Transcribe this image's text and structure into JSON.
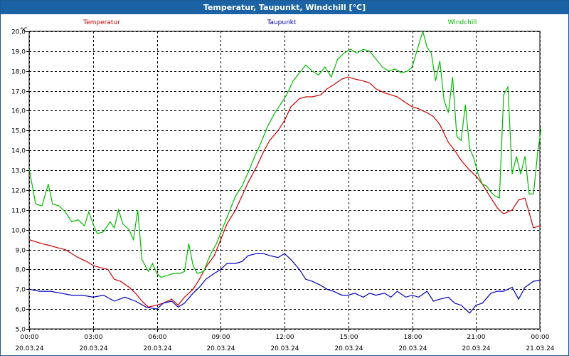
{
  "window_title": "Temperatur, Taupunkt, Windchill [°C]",
  "chart_data": {
    "type": "line",
    "ylabel": "°C",
    "ylim": [
      5.0,
      20.0
    ],
    "yticks": [
      5.0,
      6.0,
      7.0,
      8.0,
      9.0,
      10.0,
      11.0,
      12.0,
      13.0,
      14.0,
      15.0,
      16.0,
      17.0,
      18.0,
      19.0,
      20.0
    ],
    "ytick_labels": [
      "5,0",
      "6,0",
      "7,0",
      "8,0",
      "9,0",
      "10,0",
      "11,0",
      "12,0",
      "13,0",
      "14,0",
      "15,0",
      "16,0",
      "17,0",
      "18,0",
      "19,0",
      "20,0"
    ],
    "xlim": [
      0,
      24
    ],
    "xticks": [
      {
        "h": 0,
        "time": "00:00",
        "date": "20.03.24"
      },
      {
        "h": 3,
        "time": "03:00",
        "date": "20.03.24"
      },
      {
        "h": 6,
        "time": "06:00",
        "date": "20.03.24"
      },
      {
        "h": 9,
        "time": "09:00",
        "date": "20.03.24"
      },
      {
        "h": 12,
        "time": "12:00",
        "date": "20.03.24"
      },
      {
        "h": 15,
        "time": "15:00",
        "date": "20.03.24"
      },
      {
        "h": 18,
        "time": "18:00",
        "date": "20.03.24"
      },
      {
        "h": 21,
        "time": "21:00",
        "date": "20.03.24"
      },
      {
        "h": 24,
        "time": "00:00",
        "date": "21.03.24"
      }
    ],
    "grid": true,
    "legend_position": "top",
    "series": [
      {
        "name": "Temperatur",
        "color": "#cc0000",
        "points": [
          [
            0.0,
            9.5
          ],
          [
            0.3,
            9.4
          ],
          [
            0.6,
            9.3
          ],
          [
            1.0,
            9.2
          ],
          [
            1.3,
            9.1
          ],
          [
            1.7,
            9.0
          ],
          [
            2.0,
            8.8
          ],
          [
            2.3,
            8.6
          ],
          [
            2.7,
            8.4
          ],
          [
            3.0,
            8.2
          ],
          [
            3.3,
            8.1
          ],
          [
            3.7,
            8.0
          ],
          [
            4.0,
            7.5
          ],
          [
            4.3,
            7.4
          ],
          [
            4.7,
            7.1
          ],
          [
            5.0,
            6.8
          ],
          [
            5.3,
            6.4
          ],
          [
            5.6,
            6.1
          ],
          [
            6.0,
            6.2
          ],
          [
            6.3,
            6.3
          ],
          [
            6.7,
            6.5
          ],
          [
            7.0,
            6.2
          ],
          [
            7.3,
            6.6
          ],
          [
            7.7,
            7.0
          ],
          [
            8.0,
            7.5
          ],
          [
            8.3,
            8.1
          ],
          [
            8.7,
            8.7
          ],
          [
            9.0,
            9.5
          ],
          [
            9.3,
            10.3
          ],
          [
            9.7,
            11.0
          ],
          [
            10.0,
            11.7
          ],
          [
            10.3,
            12.4
          ],
          [
            10.7,
            13.2
          ],
          [
            11.0,
            13.9
          ],
          [
            11.3,
            14.5
          ],
          [
            11.7,
            15.0
          ],
          [
            12.0,
            15.5
          ],
          [
            12.3,
            16.2
          ],
          [
            12.7,
            16.6
          ],
          [
            13.0,
            16.7
          ],
          [
            13.3,
            16.7
          ],
          [
            13.7,
            16.8
          ],
          [
            14.0,
            17.1
          ],
          [
            14.3,
            17.3
          ],
          [
            14.7,
            17.6
          ],
          [
            15.0,
            17.7
          ],
          [
            15.3,
            17.6
          ],
          [
            15.7,
            17.5
          ],
          [
            16.0,
            17.4
          ],
          [
            16.3,
            17.1
          ],
          [
            16.7,
            16.9
          ],
          [
            17.0,
            16.8
          ],
          [
            17.3,
            16.7
          ],
          [
            17.7,
            16.4
          ],
          [
            18.0,
            16.2
          ],
          [
            18.3,
            16.1
          ],
          [
            18.7,
            15.9
          ],
          [
            19.0,
            15.7
          ],
          [
            19.3,
            15.3
          ],
          [
            19.7,
            14.4
          ],
          [
            20.0,
            14.0
          ],
          [
            20.3,
            13.5
          ],
          [
            20.7,
            13.0
          ],
          [
            21.0,
            12.7
          ],
          [
            21.3,
            12.3
          ],
          [
            21.7,
            11.6
          ],
          [
            22.0,
            11.1
          ],
          [
            22.3,
            10.8
          ],
          [
            22.7,
            11.0
          ],
          [
            23.0,
            11.5
          ],
          [
            23.3,
            11.6
          ],
          [
            23.7,
            10.1
          ],
          [
            24.0,
            10.2
          ],
          [
            24.2,
            10.1
          ]
        ]
      },
      {
        "name": "Taupunkt",
        "color": "#0000bb",
        "points": [
          [
            0.0,
            7.0
          ],
          [
            0.5,
            6.9
          ],
          [
            1.0,
            6.9
          ],
          [
            1.5,
            6.8
          ],
          [
            2.0,
            6.7
          ],
          [
            2.5,
            6.7
          ],
          [
            3.0,
            6.6
          ],
          [
            3.5,
            6.7
          ],
          [
            4.0,
            6.4
          ],
          [
            4.5,
            6.6
          ],
          [
            5.0,
            6.4
          ],
          [
            5.5,
            6.1
          ],
          [
            6.0,
            6.0
          ],
          [
            6.3,
            6.3
          ],
          [
            6.7,
            6.4
          ],
          [
            7.0,
            6.1
          ],
          [
            7.3,
            6.3
          ],
          [
            7.7,
            6.8
          ],
          [
            8.0,
            7.1
          ],
          [
            8.3,
            7.5
          ],
          [
            8.7,
            7.8
          ],
          [
            9.0,
            8.0
          ],
          [
            9.3,
            8.3
          ],
          [
            9.7,
            8.3
          ],
          [
            10.0,
            8.4
          ],
          [
            10.3,
            8.7
          ],
          [
            10.7,
            8.8
          ],
          [
            11.0,
            8.8
          ],
          [
            11.3,
            8.7
          ],
          [
            11.7,
            8.6
          ],
          [
            12.0,
            8.8
          ],
          [
            12.3,
            8.5
          ],
          [
            12.7,
            8.0
          ],
          [
            13.0,
            7.5
          ],
          [
            13.3,
            7.4
          ],
          [
            13.7,
            7.2
          ],
          [
            14.0,
            7.0
          ],
          [
            14.3,
            6.9
          ],
          [
            14.7,
            6.7
          ],
          [
            15.0,
            6.7
          ],
          [
            15.3,
            6.8
          ],
          [
            15.7,
            6.6
          ],
          [
            16.0,
            6.8
          ],
          [
            16.3,
            6.7
          ],
          [
            16.7,
            6.8
          ],
          [
            17.0,
            6.6
          ],
          [
            17.3,
            6.9
          ],
          [
            17.7,
            6.6
          ],
          [
            18.0,
            6.7
          ],
          [
            18.3,
            6.6
          ],
          [
            18.7,
            6.9
          ],
          [
            19.0,
            6.4
          ],
          [
            19.3,
            6.5
          ],
          [
            19.7,
            6.6
          ],
          [
            20.0,
            6.3
          ],
          [
            20.3,
            6.2
          ],
          [
            20.7,
            5.8
          ],
          [
            21.0,
            6.2
          ],
          [
            21.3,
            6.3
          ],
          [
            21.7,
            6.8
          ],
          [
            22.0,
            6.9
          ],
          [
            22.3,
            6.9
          ],
          [
            22.7,
            7.1
          ],
          [
            23.0,
            6.5
          ],
          [
            23.3,
            7.1
          ],
          [
            23.7,
            7.4
          ],
          [
            24.2,
            7.5
          ]
        ]
      },
      {
        "name": "Windchill",
        "color": "#00bb00",
        "points": [
          [
            0.0,
            13.1
          ],
          [
            0.3,
            11.3
          ],
          [
            0.6,
            11.2
          ],
          [
            0.9,
            12.3
          ],
          [
            1.1,
            11.3
          ],
          [
            1.4,
            11.2
          ],
          [
            1.7,
            10.9
          ],
          [
            2.0,
            10.4
          ],
          [
            2.3,
            10.5
          ],
          [
            2.6,
            10.2
          ],
          [
            2.8,
            10.9
          ],
          [
            3.0,
            10.3
          ],
          [
            3.2,
            9.8
          ],
          [
            3.5,
            9.9
          ],
          [
            3.8,
            10.4
          ],
          [
            4.0,
            10.1
          ],
          [
            4.2,
            11.0
          ],
          [
            4.4,
            10.3
          ],
          [
            4.7,
            10.0
          ],
          [
            4.9,
            9.5
          ],
          [
            5.1,
            11.0
          ],
          [
            5.3,
            8.5
          ],
          [
            5.6,
            7.9
          ],
          [
            5.8,
            8.3
          ],
          [
            6.0,
            7.8
          ],
          [
            6.2,
            7.6
          ],
          [
            6.5,
            7.7
          ],
          [
            6.8,
            7.8
          ],
          [
            7.1,
            7.8
          ],
          [
            7.3,
            7.9
          ],
          [
            7.5,
            9.3
          ],
          [
            7.7,
            8.2
          ],
          [
            7.9,
            7.8
          ],
          [
            8.2,
            7.9
          ],
          [
            8.5,
            8.7
          ],
          [
            8.8,
            9.3
          ],
          [
            9.1,
            10.1
          ],
          [
            9.4,
            10.9
          ],
          [
            9.7,
            11.7
          ],
          [
            10.0,
            12.2
          ],
          [
            10.3,
            12.9
          ],
          [
            10.6,
            13.7
          ],
          [
            10.9,
            14.4
          ],
          [
            11.2,
            15.2
          ],
          [
            11.5,
            15.8
          ],
          [
            11.8,
            16.3
          ],
          [
            12.1,
            16.8
          ],
          [
            12.4,
            17.5
          ],
          [
            12.7,
            17.9
          ],
          [
            13.0,
            18.3
          ],
          [
            13.3,
            18.0
          ],
          [
            13.6,
            17.8
          ],
          [
            13.9,
            18.2
          ],
          [
            14.2,
            17.7
          ],
          [
            14.5,
            18.6
          ],
          [
            14.8,
            18.9
          ],
          [
            15.1,
            19.1
          ],
          [
            15.4,
            18.9
          ],
          [
            15.7,
            19.1
          ],
          [
            16.0,
            19.0
          ],
          [
            16.3,
            18.6
          ],
          [
            16.6,
            18.2
          ],
          [
            16.9,
            18.0
          ],
          [
            17.2,
            18.1
          ],
          [
            17.5,
            17.9
          ],
          [
            17.8,
            18.0
          ],
          [
            18.0,
            18.2
          ],
          [
            18.3,
            19.3
          ],
          [
            18.5,
            20.0
          ],
          [
            18.7,
            19.2
          ],
          [
            18.9,
            18.9
          ],
          [
            19.1,
            17.5
          ],
          [
            19.3,
            18.5
          ],
          [
            19.5,
            16.5
          ],
          [
            19.7,
            15.9
          ],
          [
            19.9,
            17.7
          ],
          [
            20.1,
            14.7
          ],
          [
            20.3,
            14.5
          ],
          [
            20.5,
            16.3
          ],
          [
            20.7,
            14.1
          ],
          [
            20.9,
            13.6
          ],
          [
            21.1,
            12.8
          ],
          [
            21.3,
            12.3
          ],
          [
            21.5,
            12.2
          ],
          [
            21.7,
            11.9
          ],
          [
            21.9,
            11.7
          ],
          [
            22.1,
            11.6
          ],
          [
            22.3,
            16.8
          ],
          [
            22.5,
            17.2
          ],
          [
            22.7,
            12.8
          ],
          [
            22.9,
            13.7
          ],
          [
            23.1,
            12.8
          ],
          [
            23.3,
            13.7
          ],
          [
            23.5,
            11.8
          ],
          [
            23.7,
            11.8
          ],
          [
            23.9,
            13.9
          ],
          [
            24.2,
            16.1
          ]
        ]
      }
    ]
  }
}
